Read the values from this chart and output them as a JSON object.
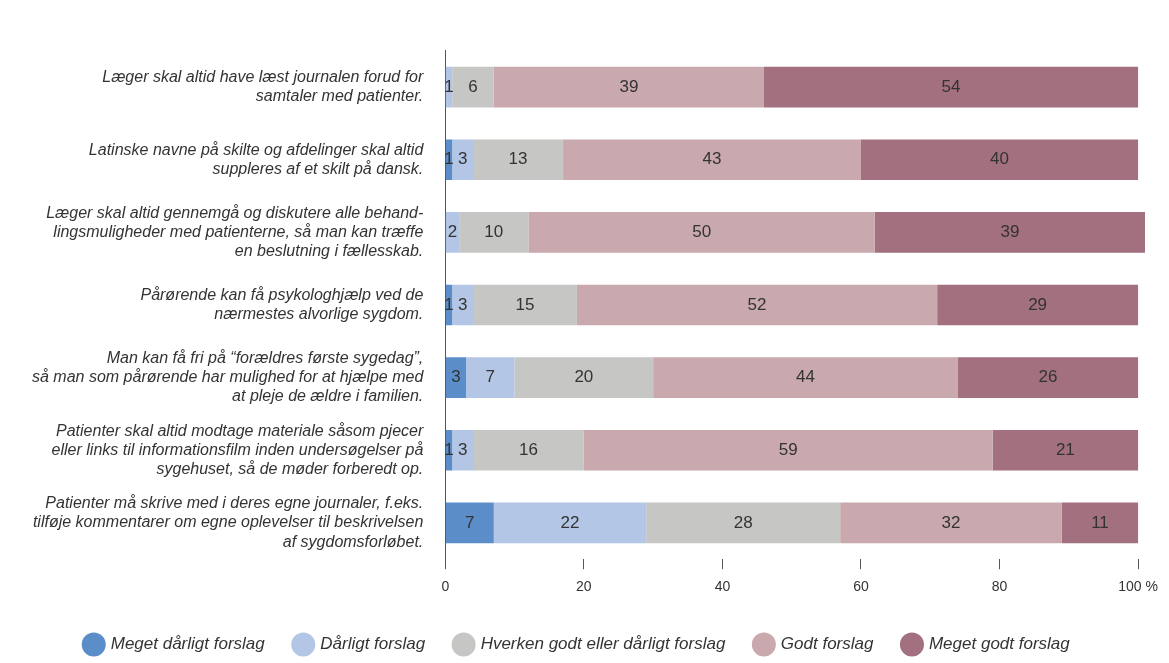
{
  "chart_data": {
    "type": "bar",
    "orientation": "horizontal",
    "stacked": true,
    "legend": "bottom",
    "marker": "circle",
    "grid": false,
    "categories": [
      "Læger skal altid have læst journalen forud for\nsamtaler med patienter.",
      "Latinske navne på skilte og afdelinger skal altid\nsuppleres af et skilt på dansk.",
      "Læger skal altid gennemgå og diskutere alle behand-\nlingsmuligheder med patienterne, så man kan træffe\nen beslutning i fællesskab.",
      "Pårørende kan få psykologhjælp ved de\nnærmestes alvorlige sygdom.",
      "Man kan få fri på “forældres første sygedag”,\nså man som pårørende har mulighed for at hjælpe med\nat pleje de ældre i familien.",
      "Patienter skal altid modtage materiale såsom pjecer\neller links til informationsfilm inden undersøgelser på\nsygehuset, så de møder forberedt op.",
      "Patienter må skrive med i deres egne journaler, f.eks.\ntilføje kommentarer om egne oplevelser til beskrivelsen\naf sygdomsforløbet."
    ],
    "series": [
      {
        "name": "Meget dårligt forslag",
        "color": "#5b8ec9",
        "values": [
          0,
          1,
          0,
          1,
          3,
          1,
          7
        ],
        "value_labels": [
          null,
          "1",
          null,
          "1",
          "3",
          "1",
          "7"
        ]
      },
      {
        "name": "Dårligt forslag",
        "color": "#b4c6e6",
        "values": [
          1,
          3,
          2,
          3,
          7,
          3,
          22
        ],
        "value_labels": [
          "1",
          "3",
          "2",
          "3",
          "7",
          "3",
          "22"
        ]
      },
      {
        "name": "Hverken godt eller dårligt forslag",
        "color": "#c6c6c4",
        "values": [
          6,
          13,
          10,
          15,
          20,
          16,
          28
        ],
        "value_labels": [
          "6",
          "13",
          "10",
          "15",
          "20",
          "16",
          "28"
        ]
      },
      {
        "name": "Godt forslag",
        "color": "#c9a9ad",
        "values": [
          39,
          43,
          50,
          52,
          44,
          59,
          32
        ],
        "value_labels": [
          "39",
          "43",
          "50",
          "52",
          "44",
          "59",
          "32"
        ]
      },
      {
        "name": "Meget godt forslag",
        "color": "#a2707f",
        "values": [
          54,
          40,
          39,
          29,
          26,
          21,
          11
        ],
        "value_labels": [
          "54",
          "40",
          "39",
          "29",
          "26",
          "21",
          "11"
        ]
      }
    ],
    "xlim": [
      0,
      101
    ],
    "xticks": [
      0,
      20,
      40,
      60,
      80,
      {
        "value": 100,
        "label": "100 %"
      }
    ]
  }
}
